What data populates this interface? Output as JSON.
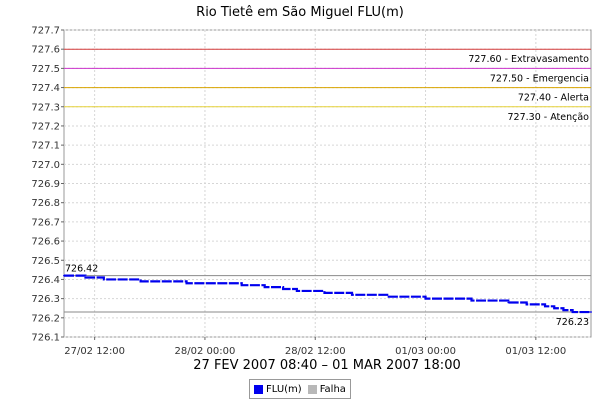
{
  "chart_data": {
    "type": "line",
    "title": "Rio Tietê em São Miguel FLU(m)",
    "xlabel": "27 FEV 2007 08:40 – 01 MAR 2007 18:00",
    "ylabel": "",
    "x_range": [
      "2007-02-27T08:40",
      "2007-03-01T18:00"
    ],
    "x_ticks": [
      {
        "t": "2007-02-27T12:00",
        "label": "27/02 12:00"
      },
      {
        "t": "2007-02-28T00:00",
        "label": "28/02 00:00"
      },
      {
        "t": "2007-02-28T12:00",
        "label": "28/02 12:00"
      },
      {
        "t": "2007-03-01T00:00",
        "label": "01/03 00:00"
      },
      {
        "t": "2007-03-01T12:00",
        "label": "01/03 12:00"
      }
    ],
    "ylim": [
      726.1,
      727.7
    ],
    "y_ticks": [
      "726.1",
      "726.2",
      "726.3",
      "726.4",
      "726.5",
      "726.6",
      "726.7",
      "726.8",
      "726.9",
      "727.0",
      "727.1",
      "727.2",
      "727.3",
      "727.4",
      "727.5",
      "727.6",
      "727.7"
    ],
    "grid": true,
    "thresholds": [
      {
        "value": 727.6,
        "label": "727.60 - Extravasamento",
        "color": "#d43a3a"
      },
      {
        "value": 727.5,
        "label": "727.50 - Emergencia",
        "color": "#cc33cc"
      },
      {
        "value": 727.4,
        "label": "727.40 - Alerta",
        "color": "#d9a400"
      },
      {
        "value": 727.3,
        "label": "727.30 - Atenção",
        "color": "#e6d23a"
      }
    ],
    "reference_lines": [
      {
        "value": 726.42,
        "label": "726.42",
        "label_side": "left"
      },
      {
        "value": 726.23,
        "label": "726.23",
        "label_side": "right"
      }
    ],
    "series": [
      {
        "name": "FLU(m)",
        "color": "#0000ee",
        "points": [
          [
            "2007-02-27T08:40",
            726.42
          ],
          [
            "2007-02-27T11:00",
            726.41
          ],
          [
            "2007-02-27T13:00",
            726.4
          ],
          [
            "2007-02-27T17:00",
            726.39
          ],
          [
            "2007-02-27T22:00",
            726.38
          ],
          [
            "2007-02-28T04:00",
            726.37
          ],
          [
            "2007-02-28T06:30",
            726.36
          ],
          [
            "2007-02-28T08:30",
            726.35
          ],
          [
            "2007-02-28T10:00",
            726.34
          ],
          [
            "2007-02-28T13:00",
            726.33
          ],
          [
            "2007-02-28T16:00",
            726.32
          ],
          [
            "2007-02-28T20:00",
            726.31
          ],
          [
            "2007-03-01T00:00",
            726.3
          ],
          [
            "2007-03-01T05:00",
            726.29
          ],
          [
            "2007-03-01T09:00",
            726.28
          ],
          [
            "2007-03-01T11:00",
            726.27
          ],
          [
            "2007-03-01T13:00",
            726.26
          ],
          [
            "2007-03-01T14:00",
            726.25
          ],
          [
            "2007-03-01T15:00",
            726.24
          ],
          [
            "2007-03-01T16:00",
            726.23
          ],
          [
            "2007-03-01T18:00",
            726.23
          ]
        ]
      }
    ],
    "legend": {
      "position": "bottom",
      "items": [
        {
          "label": "FLU(m)",
          "color": "#0000ee"
        },
        {
          "label": "Falha",
          "color": "#b8b8b8"
        }
      ]
    }
  }
}
